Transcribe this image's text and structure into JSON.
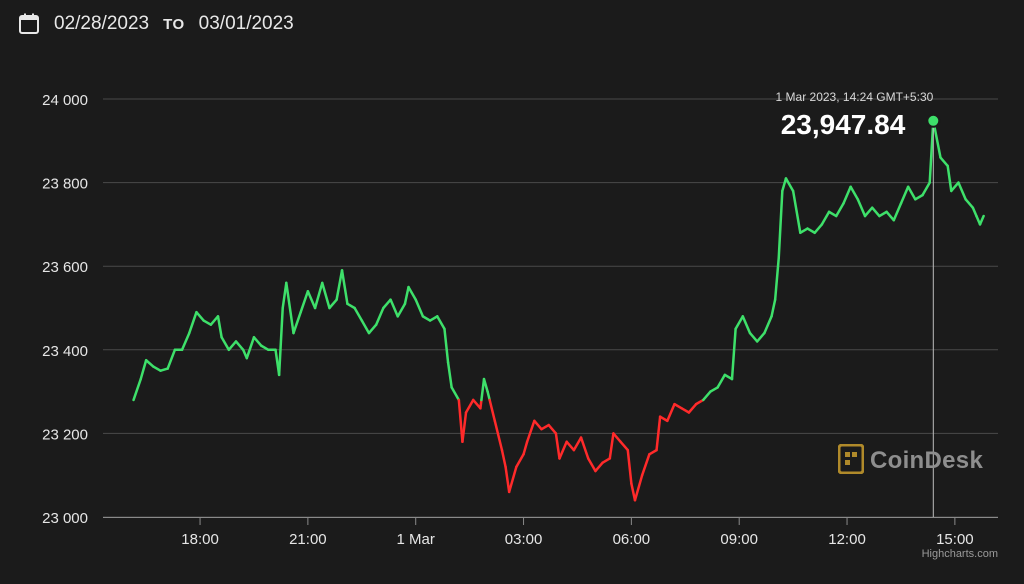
{
  "header": {
    "from_date": "02/28/2023",
    "to_label": "TO",
    "to_date": "03/01/2023"
  },
  "tooltip": {
    "datetime": "1 Mar 2023, 14:24 GMT+5:30",
    "value": "23,947.84"
  },
  "watermark": {
    "text": "CoinDesk"
  },
  "credit": "Highcharts.com",
  "colors": {
    "background": "#1b1b1b",
    "up": "#3ee06a",
    "down": "#ff2a2a",
    "grid": "#4a4a4a",
    "text": "#e6e6e6"
  },
  "chart_data": {
    "type": "line",
    "title": "",
    "xlabel": "",
    "ylabel": "",
    "ylim": [
      23000,
      24000
    ],
    "y_ticks": [
      {
        "value": 23000,
        "label": "23 000"
      },
      {
        "value": 23200,
        "label": "23 200"
      },
      {
        "value": 23400,
        "label": "23 400"
      },
      {
        "value": 23600,
        "label": "23 600"
      },
      {
        "value": 23800,
        "label": "23 800"
      },
      {
        "value": 24000,
        "label": "24 000"
      }
    ],
    "x_ticks": [
      {
        "hour": 18,
        "label": "18:00"
      },
      {
        "hour": 21,
        "label": "21:00"
      },
      {
        "hour": 24,
        "label": "1 Mar"
      },
      {
        "hour": 27,
        "label": "03:00"
      },
      {
        "hour": 30,
        "label": "06:00"
      },
      {
        "hour": 33,
        "label": "09:00"
      },
      {
        "hour": 36,
        "label": "12:00"
      },
      {
        "hour": 39,
        "label": "15:00"
      }
    ],
    "reference_value": 23280,
    "highlight": {
      "hour": 38.4,
      "value": 23947.84
    },
    "series": [
      {
        "points": [
          [
            16.15,
            23280
          ],
          [
            16.35,
            23330
          ],
          [
            16.5,
            23375
          ],
          [
            16.7,
            23360
          ],
          [
            16.9,
            23350
          ],
          [
            17.1,
            23355
          ],
          [
            17.3,
            23400
          ],
          [
            17.5,
            23400
          ],
          [
            17.7,
            23440
          ],
          [
            17.9,
            23490
          ],
          [
            18.1,
            23470
          ],
          [
            18.3,
            23460
          ],
          [
            18.5,
            23480
          ],
          [
            18.6,
            23430
          ],
          [
            18.8,
            23400
          ],
          [
            19.0,
            23420
          ],
          [
            19.2,
            23400
          ],
          [
            19.3,
            23380
          ],
          [
            19.5,
            23430
          ],
          [
            19.7,
            23410
          ],
          [
            19.9,
            23400
          ],
          [
            20.1,
            23400
          ],
          [
            20.2,
            23340
          ],
          [
            20.3,
            23500
          ],
          [
            20.4,
            23560
          ],
          [
            20.6,
            23440
          ],
          [
            20.8,
            23490
          ],
          [
            21.0,
            23540
          ],
          [
            21.2,
            23500
          ],
          [
            21.4,
            23560
          ],
          [
            21.6,
            23500
          ],
          [
            21.8,
            23520
          ],
          [
            21.95,
            23590
          ],
          [
            22.1,
            23510
          ],
          [
            22.3,
            23500
          ],
          [
            22.5,
            23470
          ],
          [
            22.7,
            23440
          ],
          [
            22.9,
            23460
          ],
          [
            23.1,
            23500
          ],
          [
            23.3,
            23520
          ],
          [
            23.5,
            23480
          ],
          [
            23.7,
            23510
          ],
          [
            23.8,
            23550
          ],
          [
            24.0,
            23520
          ],
          [
            24.2,
            23480
          ],
          [
            24.4,
            23470
          ],
          [
            24.6,
            23480
          ],
          [
            24.8,
            23450
          ],
          [
            24.9,
            23370
          ],
          [
            25.0,
            23310
          ],
          [
            25.2,
            23280
          ],
          [
            25.3,
            23180
          ],
          [
            25.4,
            23250
          ],
          [
            25.6,
            23280
          ],
          [
            25.8,
            23260
          ],
          [
            25.9,
            23330
          ],
          [
            26.0,
            23300
          ],
          [
            26.2,
            23230
          ],
          [
            26.4,
            23160
          ],
          [
            26.5,
            23120
          ],
          [
            26.6,
            23060
          ],
          [
            26.8,
            23120
          ],
          [
            27.0,
            23150
          ],
          [
            27.1,
            23180
          ],
          [
            27.3,
            23230
          ],
          [
            27.5,
            23210
          ],
          [
            27.7,
            23220
          ],
          [
            27.9,
            23200
          ],
          [
            28.0,
            23140
          ],
          [
            28.2,
            23180
          ],
          [
            28.4,
            23160
          ],
          [
            28.6,
            23190
          ],
          [
            28.8,
            23140
          ],
          [
            29.0,
            23110
          ],
          [
            29.2,
            23130
          ],
          [
            29.4,
            23140
          ],
          [
            29.5,
            23200
          ],
          [
            29.7,
            23180
          ],
          [
            29.9,
            23160
          ],
          [
            30.0,
            23080
          ],
          [
            30.1,
            23040
          ],
          [
            30.3,
            23100
          ],
          [
            30.5,
            23150
          ],
          [
            30.7,
            23160
          ],
          [
            30.8,
            23240
          ],
          [
            31.0,
            23230
          ],
          [
            31.2,
            23270
          ],
          [
            31.4,
            23260
          ],
          [
            31.6,
            23250
          ],
          [
            31.8,
            23270
          ],
          [
            32.0,
            23280
          ],
          [
            32.2,
            23300
          ],
          [
            32.4,
            23310
          ],
          [
            32.6,
            23340
          ],
          [
            32.8,
            23330
          ],
          [
            32.9,
            23450
          ],
          [
            33.1,
            23480
          ],
          [
            33.3,
            23440
          ],
          [
            33.5,
            23420
          ],
          [
            33.7,
            23440
          ],
          [
            33.9,
            23480
          ],
          [
            34.0,
            23520
          ],
          [
            34.1,
            23620
          ],
          [
            34.2,
            23780
          ],
          [
            34.3,
            23810
          ],
          [
            34.5,
            23780
          ],
          [
            34.7,
            23680
          ],
          [
            34.9,
            23690
          ],
          [
            35.1,
            23680
          ],
          [
            35.3,
            23700
          ],
          [
            35.5,
            23730
          ],
          [
            35.7,
            23720
          ],
          [
            35.9,
            23750
          ],
          [
            36.1,
            23790
          ],
          [
            36.3,
            23760
          ],
          [
            36.5,
            23720
          ],
          [
            36.7,
            23740
          ],
          [
            36.9,
            23720
          ],
          [
            37.1,
            23730
          ],
          [
            37.3,
            23710
          ],
          [
            37.5,
            23750
          ],
          [
            37.7,
            23790
          ],
          [
            37.9,
            23760
          ],
          [
            38.1,
            23770
          ],
          [
            38.3,
            23800
          ],
          [
            38.4,
            23947.84
          ],
          [
            38.6,
            23860
          ],
          [
            38.8,
            23840
          ],
          [
            38.9,
            23780
          ],
          [
            39.1,
            23800
          ],
          [
            39.3,
            23760
          ],
          [
            39.5,
            23740
          ],
          [
            39.6,
            23720
          ],
          [
            39.7,
            23700
          ],
          [
            39.8,
            23720
          ]
        ]
      }
    ]
  }
}
